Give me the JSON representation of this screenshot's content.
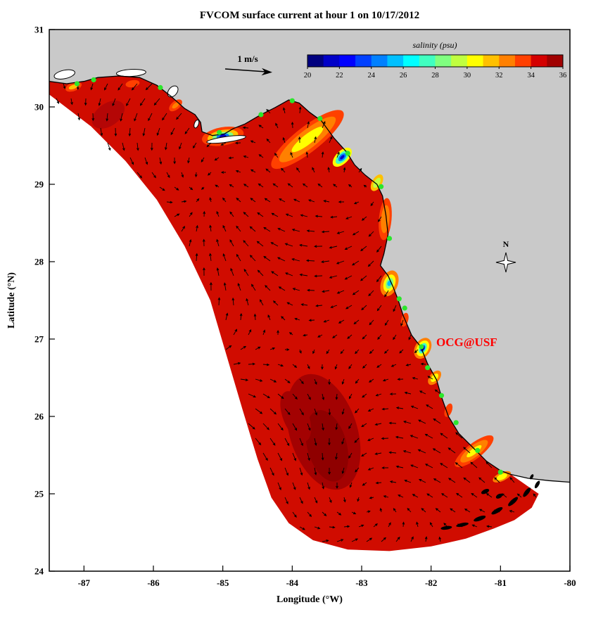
{
  "figure": {
    "title": "FVCOM surface current at hour 1 on 10/17/2012",
    "scale_arrow_label": "1 m/s",
    "compass_label": "N",
    "watermark": {
      "text": "OCG@USF",
      "color": "#ff0000"
    }
  },
  "axes": {
    "xlabel": "Longitude (°W)",
    "ylabel": "Latitude (°N)",
    "xlim": [
      -87.5,
      -80
    ],
    "ylim": [
      24,
      31
    ],
    "xticks": [
      -87,
      -86,
      -85,
      -84,
      -83,
      -82,
      -81,
      -80
    ],
    "yticks": [
      31,
      30,
      29,
      28,
      27,
      26,
      25,
      24
    ]
  },
  "colorbar": {
    "label": "salinity (psu)",
    "ticks": [
      20,
      22,
      24,
      26,
      28,
      30,
      32,
      34,
      36
    ],
    "colors": [
      "#00007f",
      "#0000c8",
      "#0000ff",
      "#0040ff",
      "#0080ff",
      "#00c0ff",
      "#00ffff",
      "#40ffc0",
      "#80ff80",
      "#c0ff40",
      "#ffff00",
      "#ffc000",
      "#ff8000",
      "#ff4000",
      "#d40000",
      "#a00000"
    ]
  },
  "colors": {
    "land": "#c9c9c9",
    "coastline": "#000000",
    "background": "#ffffff",
    "domain_base": "#d00c00",
    "dark_patch": "#a30202",
    "dark_patch_core": "#8f0000",
    "station_marker": "#2ce62c",
    "vector": "#000000"
  },
  "chart_data": {
    "type": "heatmap",
    "title": "FVCOM surface current at hour 1 on 10/17/2012",
    "xlabel": "Longitude (°W)",
    "ylabel": "Latitude (°N)",
    "xlim": [
      -87.5,
      -80
    ],
    "ylim": [
      24,
      31
    ],
    "field": "salinity (psu)",
    "field_range": [
      20,
      36
    ],
    "colorbar_ticks": [
      20,
      22,
      24,
      26,
      28,
      30,
      32,
      34,
      36
    ],
    "open_shelf_salinity_psu": 34.5,
    "vector_overlay": {
      "variable": "surface current",
      "reference": "1 m/s"
    },
    "stations_lonlat": [
      [
        -87.1,
        30.3
      ],
      [
        -86.86,
        30.35
      ],
      [
        -85.9,
        30.25
      ],
      [
        -85.05,
        29.67
      ],
      [
        -84.45,
        29.9
      ],
      [
        -84.0,
        30.08
      ],
      [
        -83.6,
        29.85
      ],
      [
        -83.2,
        29.4
      ],
      [
        -82.72,
        28.97
      ],
      [
        -82.6,
        28.3
      ],
      [
        -82.46,
        27.52
      ],
      [
        -82.38,
        27.4
      ],
      [
        -82.14,
        26.9
      ],
      [
        -82.05,
        26.63
      ],
      [
        -81.85,
        26.27
      ],
      [
        -81.64,
        25.92
      ],
      [
        -81.33,
        25.56
      ],
      [
        -81.0,
        25.28
      ]
    ],
    "coastal_low_salinity_plumes_lonlat_minpsu": [
      [
        -87.15,
        30.26,
        31
      ],
      [
        -86.3,
        30.3,
        33
      ],
      [
        -85.68,
        30.02,
        32
      ],
      [
        -85.0,
        29.62,
        21
      ],
      [
        -83.78,
        29.58,
        30
      ],
      [
        -83.28,
        29.35,
        21
      ],
      [
        -82.78,
        29.02,
        29
      ],
      [
        -82.66,
        28.55,
        32
      ],
      [
        -82.6,
        27.72,
        25
      ],
      [
        -82.38,
        27.25,
        33
      ],
      [
        -82.12,
        26.88,
        20
      ],
      [
        -81.95,
        26.5,
        30
      ],
      [
        -81.75,
        26.08,
        33
      ],
      [
        -81.38,
        25.55,
        30
      ],
      [
        -80.98,
        25.22,
        30
      ]
    ],
    "high_salinity_patch_lonlat_psu": [
      -83.55,
      25.8,
      36
    ]
  }
}
